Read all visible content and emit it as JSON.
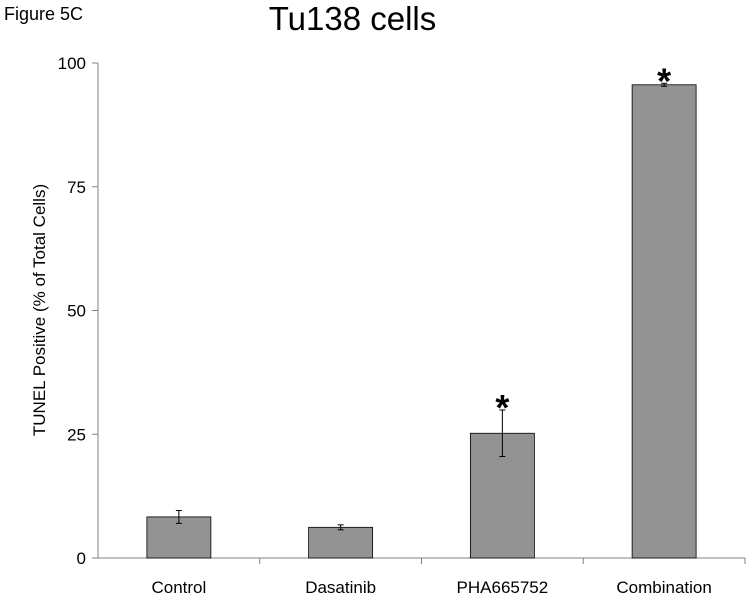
{
  "figure_label": "Figure 5C",
  "chart_data": {
    "type": "bar",
    "title": "Tu138 cells",
    "xlabel": "",
    "ylabel": "TUNEL Positive (% of Total Cells)",
    "categories": [
      "Control",
      "Dasatinib",
      "PHA665752",
      "Combination"
    ],
    "values": [
      8.3,
      6.2,
      25.2,
      95.6
    ],
    "errors": [
      1.3,
      0.5,
      4.7,
      0.3
    ],
    "significance": [
      "",
      "",
      "*",
      "*"
    ],
    "ylim": [
      0,
      100
    ],
    "yticks": [
      0,
      25,
      50,
      75,
      100
    ],
    "grid": false,
    "bar_color": "#939393",
    "axis_color": "#808080"
  }
}
